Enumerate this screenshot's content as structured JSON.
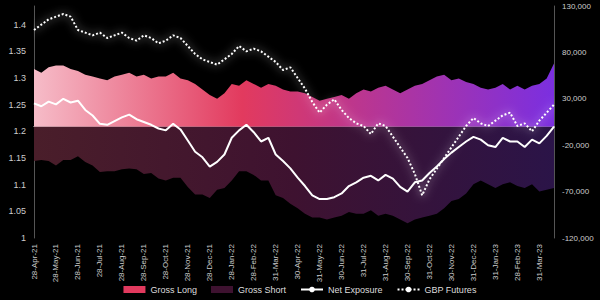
{
  "chart_data": {
    "type": "line",
    "categories": [
      "28-Apr-21",
      null,
      null,
      "28-May-21",
      null,
      null,
      "28-Jun-21",
      null,
      null,
      "28-Jul-21",
      null,
      null,
      "28-Aug-21",
      null,
      null,
      "28-Sep-21",
      null,
      null,
      "28-Oct-21",
      null,
      null,
      "28-Nov-21",
      null,
      null,
      "28-Dec-21",
      null,
      null,
      "28-Jan-22",
      null,
      null,
      "28-Feb-22",
      null,
      null,
      "31-Mar-22",
      null,
      null,
      "30-Apr-22",
      null,
      null,
      "31-May-22",
      null,
      null,
      "30-Jun-22",
      null,
      null,
      "31-Jul-22",
      null,
      null,
      "31-Aug-22",
      null,
      null,
      "30-Sep-22",
      null,
      null,
      "31-Oct-22",
      null,
      null,
      "30-Nov-22",
      null,
      null,
      "31-Dec-22",
      null,
      null,
      "31-Jan-23",
      null,
      null,
      "28-Feb-23",
      null,
      null,
      "31-Mar-23",
      null,
      null
    ],
    "series": [
      {
        "name": "Gross Long",
        "type": "area",
        "axis": "y2",
        "color": "#e23a5e",
        "values": [
          62000,
          58000,
          64000,
          66000,
          66000,
          62000,
          60000,
          56000,
          54000,
          52000,
          50000,
          54000,
          56000,
          58000,
          54000,
          56000,
          52000,
          54000,
          54000,
          58000,
          52000,
          50000,
          46000,
          40000,
          34000,
          30000,
          36000,
          46000,
          44000,
          50000,
          46000,
          42000,
          46000,
          44000,
          40000,
          38000,
          38000,
          36000,
          32000,
          28000,
          30000,
          32000,
          34000,
          30000,
          36000,
          40000,
          38000,
          42000,
          44000,
          40000,
          36000,
          40000,
          44000,
          46000,
          50000,
          54000,
          56000,
          50000,
          52000,
          48000,
          46000,
          42000,
          40000,
          42000,
          46000,
          40000,
          44000,
          40000,
          44000,
          46000,
          52000,
          68000
        ]
      },
      {
        "name": "Gross Short",
        "type": "area",
        "axis": "y2",
        "color": "#3e1230",
        "values": [
          -37000,
          -36000,
          -37000,
          -42000,
          -36000,
          -36000,
          -32000,
          -38000,
          -42000,
          -49000,
          -48000,
          -48000,
          -46000,
          -45000,
          -46000,
          -51000,
          -50000,
          -56000,
          -58000,
          -55000,
          -55000,
          -65000,
          -73000,
          -73000,
          -77000,
          -68000,
          -66000,
          -58000,
          -48000,
          -48000,
          -52000,
          -58000,
          -58000,
          -74000,
          -77000,
          -83000,
          -88000,
          -94000,
          -98000,
          -98000,
          -100000,
          -98000,
          -96000,
          -92000,
          -94000,
          -94000,
          -90000,
          -96000,
          -94000,
          -96000,
          -100000,
          -104000,
          -100000,
          -98000,
          -96000,
          -94000,
          -88000,
          -80000,
          -78000,
          -72000,
          -62000,
          -58000,
          -62000,
          -66000,
          -62000,
          -60000,
          -64000,
          -66000,
          -62000,
          -70000,
          -68000,
          -66000
        ]
      },
      {
        "name": "Net Exposure",
        "type": "line",
        "axis": "y2",
        "color": "#ffffff",
        "line_style": "solid",
        "values": [
          25000,
          22000,
          27000,
          24000,
          30000,
          26000,
          28000,
          18000,
          12000,
          3000,
          2000,
          6000,
          10000,
          13000,
          8000,
          5000,
          2000,
          -2000,
          -4000,
          3000,
          -3000,
          -15000,
          -27000,
          -33000,
          -43000,
          -38000,
          -30000,
          -12000,
          -4000,
          2000,
          -6000,
          -16000,
          -12000,
          -30000,
          -37000,
          -45000,
          -55000,
          -64000,
          -74000,
          -78000,
          -78000,
          -76000,
          -72000,
          -64000,
          -60000,
          -55000,
          -53000,
          -58000,
          -52000,
          -56000,
          -65000,
          -70000,
          -60000,
          -58000,
          -50000,
          -43000,
          -35000,
          -28000,
          -22000,
          -16000,
          -11000,
          -14000,
          -20000,
          -22000,
          -12000,
          -16000,
          -16000,
          -22000,
          -14000,
          -18000,
          -10000,
          0
        ]
      },
      {
        "name": "GBP Futures",
        "type": "line",
        "color": "#ffffff",
        "line_style": "dotted",
        "values": [
          1.39,
          1.4,
          1.41,
          1.415,
          1.42,
          1.415,
          1.39,
          1.385,
          1.38,
          1.385,
          1.375,
          1.38,
          1.385,
          1.375,
          1.37,
          1.38,
          1.375,
          1.365,
          1.37,
          1.38,
          1.375,
          1.36,
          1.345,
          1.335,
          1.33,
          1.325,
          1.335,
          1.345,
          1.36,
          1.35,
          1.355,
          1.35,
          1.34,
          1.33,
          1.315,
          1.32,
          1.3,
          1.28,
          1.255,
          1.235,
          1.25,
          1.26,
          1.24,
          1.225,
          1.215,
          1.21,
          1.195,
          1.215,
          1.21,
          1.19,
          1.17,
          1.15,
          1.12,
          1.08,
          1.11,
          1.13,
          1.15,
          1.17,
          1.19,
          1.21,
          1.225,
          1.215,
          1.21,
          1.22,
          1.23,
          1.235,
          1.21,
          1.215,
          1.2,
          1.22,
          1.235,
          1.25
        ]
      }
    ],
    "ylim": [
      1,
      1.435
    ],
    "yticks": [
      1,
      1.05,
      1.1,
      1.15,
      1.2,
      1.25,
      1.3,
      1.35,
      1.4
    ],
    "y2lim": [
      -120000,
      130000
    ],
    "y2ticks": [
      {
        "value": -120000,
        "label": "-120,000"
      },
      {
        "value": -70000,
        "label": "-70,000"
      },
      {
        "value": -20000,
        "label": "-20,000"
      },
      {
        "value": 30000,
        "label": "30,000"
      },
      {
        "value": 80000,
        "label": "80,000"
      },
      {
        "value": 130000,
        "label": "130,000"
      }
    ],
    "legend": "bottom",
    "grid": false
  }
}
